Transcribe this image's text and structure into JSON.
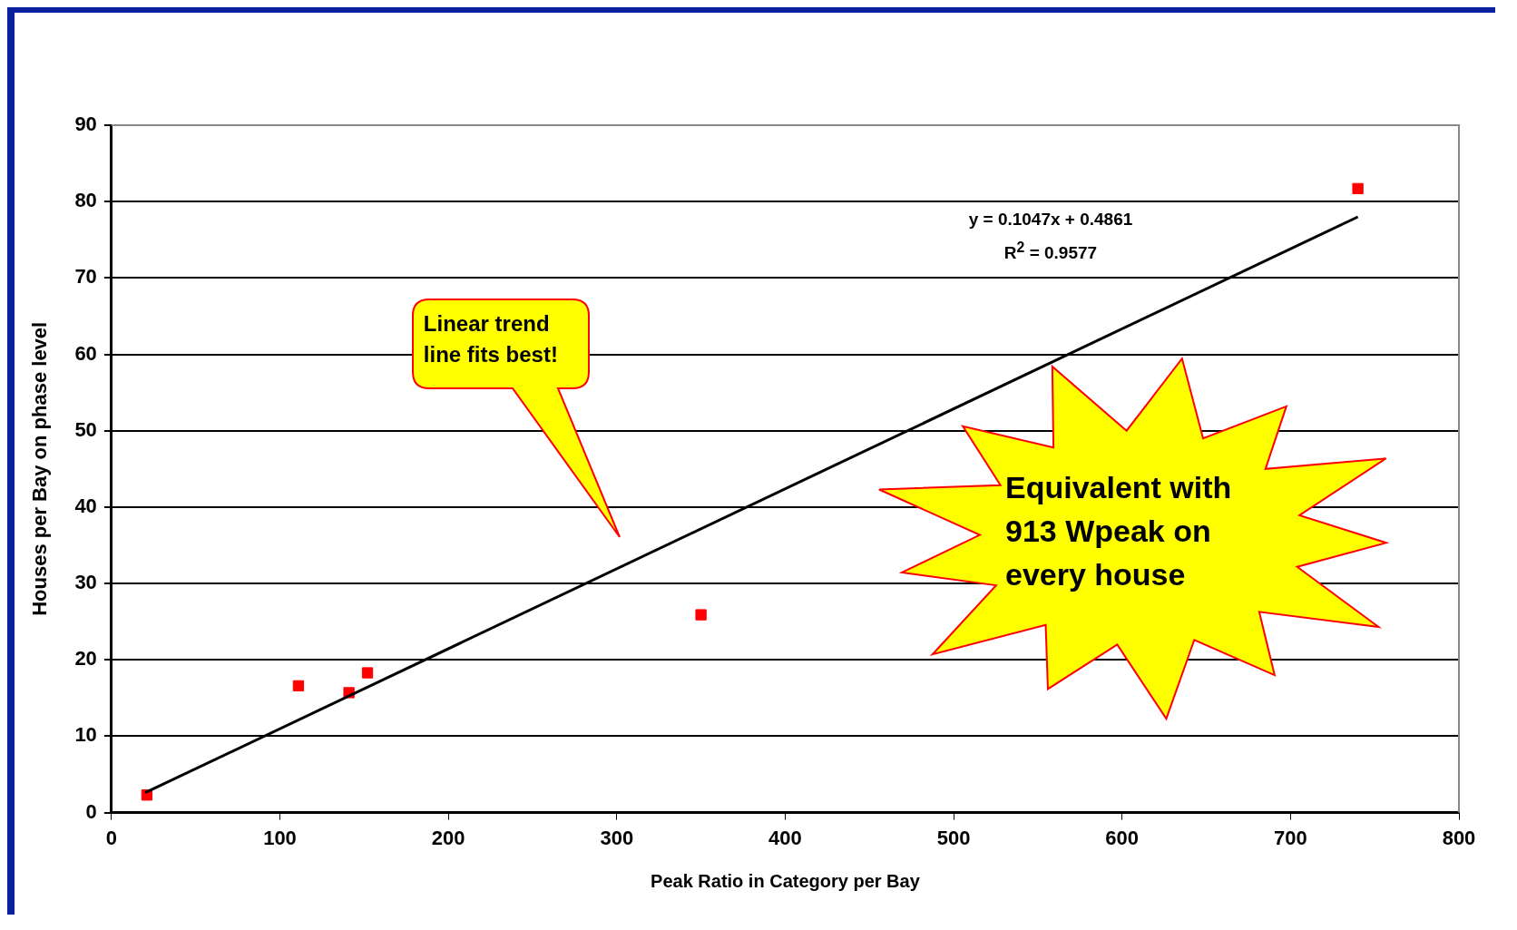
{
  "chart_data": {
    "type": "scatter",
    "xlabel": "Peak Ratio in Category per Bay",
    "ylabel": "Houses per Bay on phase level",
    "xlim": [
      0,
      800
    ],
    "ylim": [
      0,
      90
    ],
    "xticks": [
      0,
      100,
      200,
      300,
      400,
      500,
      600,
      700,
      800
    ],
    "yticks": [
      0,
      10,
      20,
      30,
      40,
      50,
      60,
      70,
      80,
      90
    ],
    "grid": "y",
    "legend": false,
    "series": [
      {
        "color": "#ff0000",
        "marker": "square",
        "x": [
          21,
          111,
          141,
          152,
          350,
          740
        ],
        "values": [
          2.3,
          16.6,
          15.7,
          18.3,
          25.9,
          81.7
        ]
      },
      {
        "type": "line",
        "marker": "none",
        "color": "#000000",
        "x": [
          20,
          740
        ],
        "values": [
          2.6,
          78.0
        ]
      }
    ],
    "annotations": [
      "Linear trend line fits best!",
      "Equivalent with 913 Wpeak on every house",
      "y = 0.1047x + 0.4861",
      "R$^{2}$ = 0.9577"
    ]
  }
}
